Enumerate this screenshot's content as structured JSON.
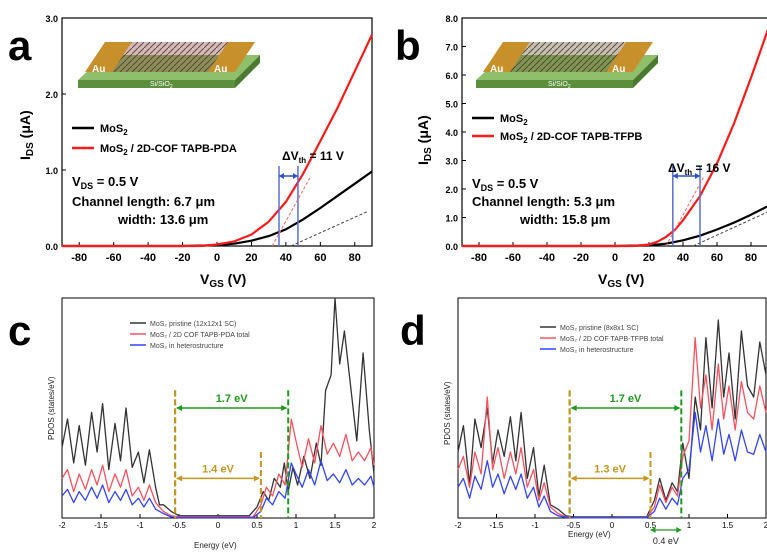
{
  "chart_data": [
    {
      "panel": "a",
      "type": "line",
      "xlabel_main": "V",
      "xlabel_sub": "GS",
      "xlabel_unit": " (V)",
      "ylabel_main": "I",
      "ylabel_sub": "DS",
      "ylabel_unit": " (μA)",
      "xlim": [
        -90,
        90
      ],
      "ylim": [
        0,
        3.0
      ],
      "xticks": [
        "-80",
        "-60",
        "-40",
        "-20",
        "0",
        "20",
        "40",
        "60",
        "80"
      ],
      "yticks": [
        "0.0",
        "1.0",
        "2.0",
        "3.0"
      ],
      "series": [
        {
          "name": "MoS",
          "name_sub": "2",
          "name_rest": "",
          "color": "#000000",
          "x": [
            -90,
            -20,
            0,
            10,
            20,
            30,
            40,
            50,
            60,
            70,
            80,
            90
          ],
          "y": [
            0,
            0,
            0.01,
            0.03,
            0.07,
            0.13,
            0.22,
            0.35,
            0.5,
            0.66,
            0.82,
            0.98
          ]
        },
        {
          "name": "MoS",
          "name_sub": "2",
          "name_rest": " / 2D-COF TAPB-PDA",
          "color": "#ff1a1a",
          "x": [
            -90,
            -10,
            0,
            10,
            20,
            30,
            40,
            50,
            60,
            70,
            80,
            90
          ],
          "y": [
            0,
            0,
            0.02,
            0.06,
            0.15,
            0.32,
            0.58,
            0.95,
            1.38,
            1.82,
            2.3,
            2.78
          ]
        }
      ],
      "vds": "V",
      "vds_sub": "DS",
      "vds_rest": " = 0.5 V",
      "length_text": "Channel length: 6.7 μm",
      "width_text": "width: 13.6 μm",
      "dv_label": "ΔV",
      "dv_sub": "th",
      "dv_rest": " = 11 V",
      "vth": [
        36,
        47
      ],
      "inset": {
        "left_pad": "Au",
        "right_pad": "Au",
        "substrate": "Si/SiO",
        "substrate_sub": "2"
      }
    },
    {
      "panel": "b",
      "type": "line",
      "xlabel_main": "V",
      "xlabel_sub": "GS",
      "xlabel_unit": " (V)",
      "ylabel_main": "I",
      "ylabel_sub": "DS",
      "ylabel_unit": " (μA)",
      "xlim": [
        -90,
        90
      ],
      "ylim": [
        0,
        8.0
      ],
      "xticks": [
        "-80",
        "-60",
        "-40",
        "-20",
        "0",
        "20",
        "40",
        "60",
        "80"
      ],
      "yticks": [
        "0.0",
        "1.0",
        "2.0",
        "3.0",
        "4.0",
        "5.0",
        "6.0",
        "7.0",
        "8.0"
      ],
      "series": [
        {
          "name": "MoS",
          "name_sub": "2",
          "name_rest": "",
          "color": "#000000",
          "x": [
            -90,
            -10,
            0,
            20,
            30,
            40,
            50,
            60,
            70,
            80,
            90
          ],
          "y": [
            0,
            0,
            0,
            0.02,
            0.08,
            0.2,
            0.36,
            0.58,
            0.82,
            1.1,
            1.4
          ]
        },
        {
          "name": "MoS",
          "name_sub": "2",
          "name_rest": " / 2D-COF TAPB-TFPB",
          "color": "#ff1a1a",
          "x": [
            -90,
            10,
            20,
            25,
            30,
            35,
            40,
            50,
            60,
            70,
            80,
            90
          ],
          "y": [
            0,
            0,
            0.05,
            0.15,
            0.32,
            0.55,
            0.9,
            1.75,
            2.9,
            4.3,
            5.9,
            7.6
          ]
        }
      ],
      "vds": "V",
      "vds_sub": "DS",
      "vds_rest": " = 0.5 V",
      "length_text": "Channel length: 5.3 μm",
      "width_text": "width: 15.8 μm",
      "dv_label": "ΔV",
      "dv_sub": "th",
      "dv_rest": " = 16 V",
      "vth": [
        34,
        50
      ],
      "inset": {
        "left_pad": "Au",
        "right_pad": "Au",
        "substrate": "Si/SiO",
        "substrate_sub": "2"
      }
    },
    {
      "panel": "c",
      "type": "line",
      "xlabel": "Energy (eV)",
      "ylabel": "PDOS (states/eV)",
      "xlim": [
        -2,
        2
      ],
      "ylim": [
        0,
        10
      ],
      "xticks": [
        "-2",
        "-1.5",
        "-1",
        "-0.5",
        "0",
        "0.5",
        "1",
        "1.5",
        "2"
      ],
      "series": [
        {
          "name": "MoS₂ pristine (12x12x1 SC)",
          "color": "#333333",
          "x": [
            -2,
            -1.93,
            -1.85,
            -1.78,
            -1.7,
            -1.62,
            -1.55,
            -1.48,
            -1.4,
            -1.32,
            -1.25,
            -1.18,
            -1.1,
            -1.02,
            -0.95,
            -0.88,
            -0.8,
            -0.75,
            -0.7,
            -0.6,
            -0.5,
            0.4,
            0.5,
            0.58,
            0.65,
            0.72,
            0.8,
            0.85,
            0.9,
            0.96,
            1.02,
            1.1,
            1.18,
            1.26,
            1.32,
            1.38,
            1.45,
            1.5,
            1.56,
            1.62,
            1.7,
            1.78,
            1.86,
            1.94,
            2
          ],
          "y": [
            3.2,
            4.5,
            2.5,
            4.2,
            2.4,
            4.8,
            3.0,
            5.2,
            2.2,
            4.3,
            2.6,
            5.0,
            2.3,
            3.0,
            1.6,
            3.1,
            1.4,
            0.6,
            0.6,
            0.3,
            0.1,
            0.1,
            0.5,
            1.2,
            0.8,
            1.8,
            1.4,
            2.5,
            1.2,
            2.3,
            1.5,
            2.8,
            1.8,
            3.4,
            2.4,
            5.8,
            6.5,
            10.0,
            7.0,
            8.5,
            6.0,
            3.5,
            7.5,
            4.0,
            2.0
          ]
        },
        {
          "name": "MoS₂ / 2D COF TAPB-PDA total",
          "color": "#ff5060",
          "x": [
            -2,
            -1.93,
            -1.85,
            -1.78,
            -1.7,
            -1.62,
            -1.55,
            -1.48,
            -1.4,
            -1.32,
            -1.25,
            -1.18,
            -1.1,
            -1.02,
            -0.95,
            -0.88,
            -0.8,
            -0.7,
            -0.6,
            -0.5,
            0.45,
            0.55,
            0.62,
            0.7,
            0.78,
            0.86,
            0.94,
            1.0,
            1.08,
            1.16,
            1.24,
            1.32,
            1.4,
            1.48,
            1.56,
            1.64,
            1.72,
            1.8,
            1.88,
            1.96,
            2
          ],
          "y": [
            1.8,
            2.2,
            1.2,
            2.0,
            1.3,
            2.2,
            1.5,
            2.4,
            1.2,
            2.0,
            1.4,
            2.2,
            1.0,
            1.4,
            0.8,
            1.5,
            0.7,
            0.3,
            0.1,
            0.05,
            0.05,
            0.6,
            1.4,
            1.0,
            2.0,
            1.5,
            4.5,
            3.5,
            2.3,
            3.6,
            2.5,
            4.2,
            2.9,
            3.4,
            2.8,
            3.8,
            2.6,
            3.0,
            2.6,
            3.2,
            2.4
          ]
        },
        {
          "name": "MoS₂ in heterostructure",
          "color": "#3344ff",
          "x": [
            -2,
            -1.93,
            -1.85,
            -1.78,
            -1.7,
            -1.62,
            -1.55,
            -1.48,
            -1.4,
            -1.32,
            -1.25,
            -1.18,
            -1.1,
            -1.02,
            -0.95,
            -0.88,
            -0.8,
            -0.7,
            -0.6,
            -0.5,
            0.45,
            0.55,
            0.62,
            0.7,
            0.78,
            0.86,
            0.94,
            1.0,
            1.08,
            1.16,
            1.24,
            1.32,
            1.4,
            1.48,
            1.56,
            1.64,
            1.72,
            1.8,
            1.88,
            1.96,
            2
          ],
          "y": [
            1.0,
            1.3,
            0.7,
            1.2,
            0.8,
            1.4,
            0.9,
            1.5,
            0.7,
            1.2,
            0.8,
            1.3,
            0.6,
            0.9,
            0.5,
            0.9,
            0.4,
            0.2,
            0.05,
            0.02,
            0.02,
            0.3,
            0.9,
            0.6,
            1.2,
            0.9,
            2.5,
            2.0,
            1.4,
            2.2,
            1.5,
            2.6,
            1.7,
            2.0,
            1.6,
            2.2,
            1.5,
            1.8,
            1.5,
            1.9,
            1.4
          ]
        }
      ],
      "gap_large": {
        "label": "1.7 eV",
        "from": -0.55,
        "to": 0.9,
        "color": "#1e9a1e"
      },
      "gap_small": {
        "label": "1.4 eV",
        "from": -0.55,
        "to": 0.55,
        "color": "#c8961e"
      }
    },
    {
      "panel": "d",
      "type": "line",
      "xlabel": "Energy (eV)",
      "ylabel": "PDOS (states/eV)",
      "xlim": [
        -2,
        2
      ],
      "ylim": [
        0,
        10
      ],
      "xticks": [
        "-2",
        "-1.5",
        "-1",
        "-0.5",
        "0",
        "0.5",
        "1",
        "1.5",
        "2"
      ],
      "series": [
        {
          "name": "MoS₂ pristine (8x8x1 SC)",
          "color": "#333333",
          "x": [
            -2,
            -1.93,
            -1.85,
            -1.78,
            -1.7,
            -1.62,
            -1.55,
            -1.48,
            -1.4,
            -1.32,
            -1.25,
            -1.18,
            -1.1,
            -1.02,
            -0.95,
            -0.88,
            -0.8,
            -0.7,
            -0.6,
            -0.5,
            0.45,
            0.55,
            0.62,
            0.7,
            0.78,
            0.85,
            0.92,
            1.0,
            1.08,
            1.15,
            1.22,
            1.3,
            1.38,
            1.45,
            1.52,
            1.6,
            1.68,
            1.76,
            1.84,
            1.92,
            2
          ],
          "y": [
            3.0,
            4.2,
            1.5,
            4.5,
            3.2,
            5.0,
            2.5,
            4.0,
            2.8,
            4.6,
            2.6,
            4.8,
            1.8,
            3.2,
            1.0,
            2.4,
            0.6,
            0.4,
            0.1,
            0.05,
            0.05,
            0.8,
            1.8,
            0.8,
            1.6,
            1.2,
            3.4,
            1.8,
            5.5,
            4.0,
            8.2,
            5.0,
            9.0,
            5.5,
            7.5,
            4.5,
            8.5,
            6.0,
            5.5,
            8.0,
            6.5
          ]
        },
        {
          "name": "MoS₂ / 2D COF TAPB-TFPB total",
          "color": "#ff5060",
          "x": [
            -2,
            -1.93,
            -1.85,
            -1.78,
            -1.7,
            -1.62,
            -1.55,
            -1.48,
            -1.4,
            -1.32,
            -1.25,
            -1.18,
            -1.1,
            -1.02,
            -0.95,
            -0.88,
            -0.8,
            -0.7,
            -0.6,
            -0.5,
            0.45,
            0.55,
            0.62,
            0.7,
            0.78,
            0.85,
            0.92,
            1.0,
            1.08,
            1.15,
            1.22,
            1.3,
            1.38,
            1.45,
            1.52,
            1.6,
            1.68,
            1.76,
            1.84,
            1.92,
            2
          ],
          "y": [
            2.2,
            2.8,
            1.4,
            3.0,
            2.0,
            5.5,
            2.2,
            3.2,
            1.8,
            3.0,
            2.0,
            3.2,
            1.4,
            2.2,
            0.8,
            1.6,
            0.5,
            0.2,
            0.05,
            0.02,
            0.02,
            0.5,
            1.5,
            0.7,
            1.4,
            1.0,
            2.8,
            3.5,
            8.2,
            5.0,
            6.5,
            4.0,
            7.0,
            4.5,
            6.0,
            4.0,
            6.2,
            4.8,
            4.5,
            6.0,
            4.8
          ]
        },
        {
          "name": "MoS₂ in heterostructure",
          "color": "#3344ff",
          "x": [
            -2,
            -1.93,
            -1.85,
            -1.78,
            -1.7,
            -1.62,
            -1.55,
            -1.48,
            -1.4,
            -1.32,
            -1.25,
            -1.18,
            -1.1,
            -1.02,
            -0.95,
            -0.88,
            -0.8,
            -0.7,
            -0.6,
            -0.5,
            0.45,
            0.55,
            0.62,
            0.7,
            0.78,
            0.85,
            0.92,
            1.0,
            1.08,
            1.15,
            1.22,
            1.3,
            1.38,
            1.45,
            1.52,
            1.6,
            1.68,
            1.76,
            1.84,
            1.92,
            2
          ],
          "y": [
            1.4,
            1.8,
            0.9,
            1.9,
            1.3,
            2.6,
            1.4,
            2.0,
            1.1,
            1.9,
            1.3,
            2.0,
            0.9,
            1.4,
            0.5,
            1.0,
            0.3,
            0.1,
            0.03,
            0.01,
            0.01,
            0.3,
            0.9,
            0.4,
            0.9,
            0.6,
            1.8,
            2.2,
            4.8,
            3.0,
            4.2,
            2.6,
            4.5,
            2.9,
            3.8,
            2.6,
            4.0,
            3.0,
            2.9,
            3.8,
            3.0
          ]
        }
      ],
      "gap_large": {
        "label": "1.7 eV",
        "from": -0.55,
        "to": 0.9,
        "color": "#1e9a1e"
      },
      "gap_small": {
        "label": "1.3 eV",
        "from": -0.55,
        "to": 0.5,
        "color": "#c8961e"
      },
      "shift": {
        "label": "0.4 eV",
        "from": 0.5,
        "to": 0.9,
        "color": "#1e9a1e"
      }
    }
  ],
  "panel_letters": [
    "a",
    "b",
    "c",
    "d"
  ]
}
